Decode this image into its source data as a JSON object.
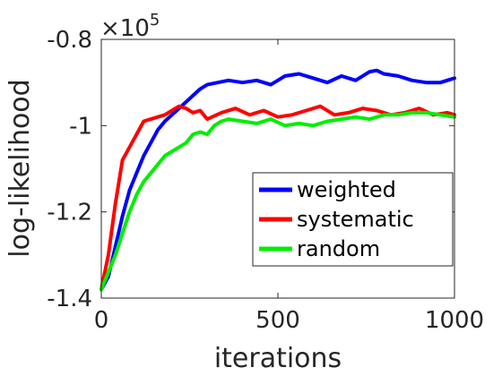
{
  "chart_data": {
    "type": "line",
    "xlabel": "iterations",
    "ylabel": "log-likelihood",
    "xlim": [
      0,
      1000
    ],
    "ylim": [
      -1.4,
      -0.8
    ],
    "xticks": [
      0,
      500,
      1000
    ],
    "yticks": [
      -1.4,
      -1.2,
      -1,
      -0.8
    ],
    "xtick_labels": [
      "0",
      "500",
      "1000"
    ],
    "ytick_labels": [
      "-1.4",
      "-1.2",
      "-1",
      "-0.8"
    ],
    "y_multiplier": {
      "base": "×10",
      "exponent": "5"
    },
    "grid": false,
    "legend_position": "lower-right",
    "series": [
      {
        "name": "weighted",
        "color": "#0000ff",
        "x": [
          0,
          20,
          40,
          60,
          80,
          100,
          120,
          140,
          160,
          180,
          200,
          220,
          240,
          260,
          280,
          300,
          330,
          360,
          400,
          440,
          480,
          520,
          560,
          600,
          640,
          680,
          720,
          760,
          780,
          800,
          840,
          880,
          920,
          960,
          1000
        ],
        "y": [
          -1.38,
          -1.35,
          -1.28,
          -1.21,
          -1.15,
          -1.11,
          -1.07,
          -1.04,
          -1.01,
          -0.99,
          -0.975,
          -0.96,
          -0.945,
          -0.93,
          -0.915,
          -0.905,
          -0.9,
          -0.895,
          -0.9,
          -0.895,
          -0.905,
          -0.885,
          -0.88,
          -0.89,
          -0.9,
          -0.885,
          -0.895,
          -0.875,
          -0.872,
          -0.88,
          -0.885,
          -0.895,
          -0.9,
          -0.9,
          -0.89
        ]
      },
      {
        "name": "systematic",
        "color": "#ff0000",
        "x": [
          0,
          20,
          40,
          60,
          80,
          100,
          120,
          140,
          160,
          180,
          200,
          220,
          240,
          260,
          280,
          300,
          340,
          380,
          420,
          460,
          500,
          540,
          580,
          620,
          660,
          700,
          740,
          780,
          820,
          860,
          900,
          940,
          980,
          1000
        ],
        "y": [
          -1.38,
          -1.3,
          -1.18,
          -1.08,
          -1.05,
          -1.02,
          -0.99,
          -0.985,
          -0.98,
          -0.975,
          -0.965,
          -0.955,
          -0.96,
          -0.97,
          -0.965,
          -0.985,
          -0.97,
          -0.96,
          -0.975,
          -0.965,
          -0.98,
          -0.975,
          -0.965,
          -0.955,
          -0.975,
          -0.97,
          -0.96,
          -0.965,
          -0.975,
          -0.97,
          -0.96,
          -0.975,
          -0.97,
          -0.975
        ]
      },
      {
        "name": "random",
        "color": "#00ee00",
        "x": [
          0,
          20,
          40,
          60,
          80,
          100,
          120,
          140,
          160,
          180,
          200,
          220,
          240,
          260,
          280,
          300,
          320,
          340,
          360,
          400,
          440,
          480,
          520,
          560,
          600,
          640,
          680,
          720,
          760,
          800,
          840,
          880,
          920,
          960,
          1000
        ],
        "y": [
          -1.38,
          -1.34,
          -1.3,
          -1.25,
          -1.2,
          -1.16,
          -1.13,
          -1.11,
          -1.09,
          -1.07,
          -1.06,
          -1.05,
          -1.04,
          -1.02,
          -1.015,
          -1.02,
          -1.0,
          -0.99,
          -0.985,
          -0.99,
          -0.995,
          -0.985,
          -1.0,
          -0.995,
          -1.0,
          -0.99,
          -0.985,
          -0.98,
          -0.985,
          -0.975,
          -0.975,
          -0.97,
          -0.97,
          -0.975,
          -0.98
        ]
      }
    ]
  }
}
